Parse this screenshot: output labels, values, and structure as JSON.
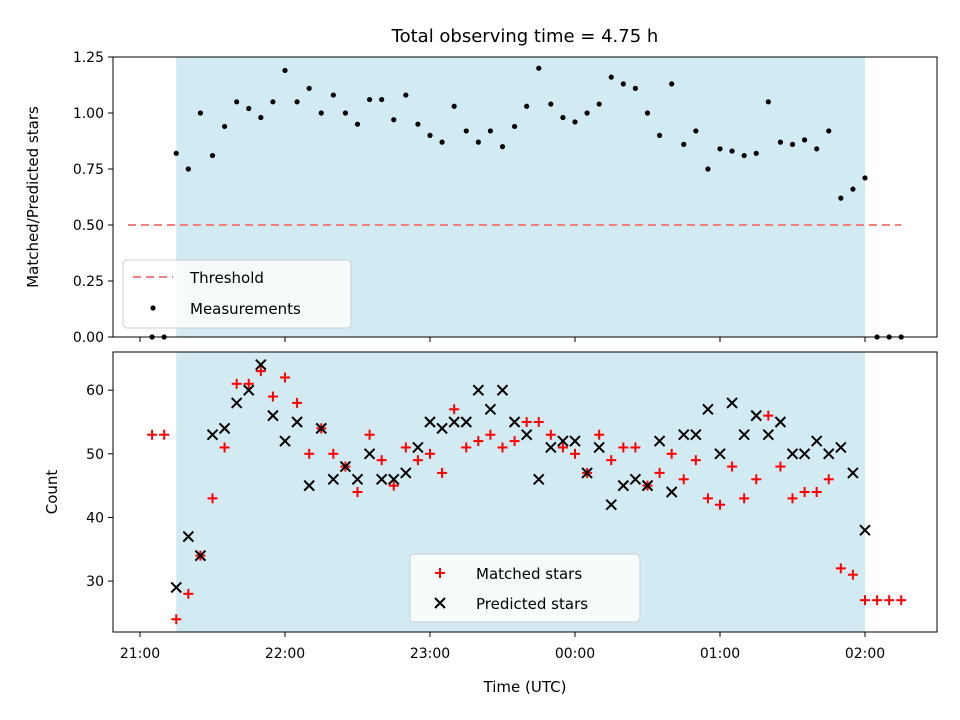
{
  "chart_data": [
    {
      "type": "scatter",
      "title": "Total observing time = 4.75 h",
      "xlabel": "",
      "ylabel": "Matched/Predicted stars",
      "ylim": [
        0,
        1.25
      ],
      "yticks": [
        "0.00",
        "0.25",
        "0.50",
        "0.75",
        "1.00",
        "1.25"
      ],
      "xlim": [
        "20:50",
        "02:30"
      ],
      "observing_window": [
        "21:15",
        "02:00"
      ],
      "threshold": {
        "name": "Threshold",
        "y": 0.5,
        "x_range": [
          "20:55",
          "02:15"
        ],
        "color": "#f08080"
      },
      "series": [
        {
          "name": "Measurements",
          "color": "#000000",
          "points": [
            [
              "21:05",
              0
            ],
            [
              "21:10",
              0
            ],
            [
              "21:15",
              0.82
            ],
            [
              "21:20",
              0.75
            ],
            [
              "21:25",
              1.0
            ],
            [
              "21:30",
              0.81
            ],
            [
              "21:35",
              0.94
            ],
            [
              "21:40",
              1.05
            ],
            [
              "21:45",
              1.02
            ],
            [
              "21:50",
              0.98
            ],
            [
              "21:55",
              1.05
            ],
            [
              "22:00",
              1.19
            ],
            [
              "22:05",
              1.05
            ],
            [
              "22:10",
              1.11
            ],
            [
              "22:15",
              1.0
            ],
            [
              "22:20",
              1.08
            ],
            [
              "22:25",
              1.0
            ],
            [
              "22:30",
              0.95
            ],
            [
              "22:35",
              1.06
            ],
            [
              "22:40",
              1.06
            ],
            [
              "22:45",
              0.97
            ],
            [
              "22:50",
              1.08
            ],
            [
              "22:55",
              0.95
            ],
            [
              "23:00",
              0.9
            ],
            [
              "23:05",
              0.87
            ],
            [
              "23:10",
              1.03
            ],
            [
              "23:15",
              0.92
            ],
            [
              "23:20",
              0.87
            ],
            [
              "23:25",
              0.92
            ],
            [
              "23:30",
              0.85
            ],
            [
              "23:35",
              0.94
            ],
            [
              "23:40",
              1.03
            ],
            [
              "23:45",
              1.2
            ],
            [
              "23:50",
              1.04
            ],
            [
              "23:55",
              0.98
            ],
            [
              "00:00",
              0.96
            ],
            [
              "00:05",
              1.0
            ],
            [
              "00:10",
              1.04
            ],
            [
              "00:15",
              1.16
            ],
            [
              "00:20",
              1.13
            ],
            [
              "00:25",
              1.11
            ],
            [
              "00:30",
              1.0
            ],
            [
              "00:35",
              0.9
            ],
            [
              "00:40",
              1.13
            ],
            [
              "00:45",
              0.86
            ],
            [
              "00:50",
              0.92
            ],
            [
              "00:55",
              0.75
            ],
            [
              "01:00",
              0.84
            ],
            [
              "01:05",
              0.83
            ],
            [
              "01:10",
              0.81
            ],
            [
              "01:15",
              0.82
            ],
            [
              "01:20",
              1.05
            ],
            [
              "01:25",
              0.87
            ],
            [
              "01:30",
              0.86
            ],
            [
              "01:35",
              0.88
            ],
            [
              "01:40",
              0.84
            ],
            [
              "01:45",
              0.92
            ],
            [
              "01:50",
              0.62
            ],
            [
              "01:55",
              0.66
            ],
            [
              "02:00",
              0.71
            ],
            [
              "02:05",
              0
            ],
            [
              "02:10",
              0
            ],
            [
              "02:15",
              0
            ]
          ]
        }
      ],
      "legend": {
        "placement": "lower-left",
        "entries": [
          "Threshold",
          "Measurements"
        ]
      }
    },
    {
      "type": "scatter",
      "title": "",
      "xlabel": "Time (UTC)",
      "ylabel": "Count",
      "ylim": [
        22,
        66
      ],
      "yticks": [
        "30",
        "40",
        "50",
        "60"
      ],
      "xlim": [
        "20:50",
        "02:30"
      ],
      "xticks": [
        "21:00",
        "22:00",
        "23:00",
        "00:00",
        "01:00",
        "02:00"
      ],
      "observing_window": [
        "21:15",
        "02:00"
      ],
      "series": [
        {
          "name": "Matched stars",
          "marker": "plus",
          "color": "#ff0000",
          "points": [
            [
              "21:05",
              53
            ],
            [
              "21:10",
              53
            ],
            [
              "21:15",
              24
            ],
            [
              "21:20",
              28
            ],
            [
              "21:25",
              34
            ],
            [
              "21:30",
              43
            ],
            [
              "21:35",
              51
            ],
            [
              "21:40",
              61
            ],
            [
              "21:45",
              61
            ],
            [
              "21:50",
              63
            ],
            [
              "21:55",
              59
            ],
            [
              "22:00",
              62
            ],
            [
              "22:05",
              58
            ],
            [
              "22:10",
              50
            ],
            [
              "22:15",
              54
            ],
            [
              "22:20",
              50
            ],
            [
              "22:25",
              48
            ],
            [
              "22:30",
              44
            ],
            [
              "22:35",
              53
            ],
            [
              "22:40",
              49
            ],
            [
              "22:45",
              45
            ],
            [
              "22:50",
              51
            ],
            [
              "22:55",
              49
            ],
            [
              "23:00",
              50
            ],
            [
              "23:05",
              47
            ],
            [
              "23:10",
              57
            ],
            [
              "23:15",
              51
            ],
            [
              "23:20",
              52
            ],
            [
              "23:25",
              53
            ],
            [
              "23:30",
              51
            ],
            [
              "23:35",
              52
            ],
            [
              "23:40",
              55
            ],
            [
              "23:45",
              55
            ],
            [
              "23:50",
              53
            ],
            [
              "23:55",
              51
            ],
            [
              "00:00",
              50
            ],
            [
              "00:05",
              47
            ],
            [
              "00:10",
              53
            ],
            [
              "00:15",
              49
            ],
            [
              "00:20",
              51
            ],
            [
              "00:25",
              51
            ],
            [
              "00:30",
              45
            ],
            [
              "00:35",
              47
            ],
            [
              "00:40",
              50
            ],
            [
              "00:45",
              46
            ],
            [
              "00:50",
              49
            ],
            [
              "00:55",
              43
            ],
            [
              "01:00",
              42
            ],
            [
              "01:05",
              48
            ],
            [
              "01:10",
              43
            ],
            [
              "01:15",
              46
            ],
            [
              "01:20",
              56
            ],
            [
              "01:25",
              48
            ],
            [
              "01:30",
              43
            ],
            [
              "01:35",
              44
            ],
            [
              "01:40",
              44
            ],
            [
              "01:45",
              46
            ],
            [
              "01:50",
              32
            ],
            [
              "01:55",
              31
            ],
            [
              "02:00",
              27
            ],
            [
              "02:05",
              27
            ],
            [
              "02:10",
              27
            ],
            [
              "02:15",
              27
            ]
          ]
        },
        {
          "name": "Predicted stars",
          "marker": "x",
          "color": "#000000",
          "points": [
            [
              "21:15",
              29
            ],
            [
              "21:20",
              37
            ],
            [
              "21:25",
              34
            ],
            [
              "21:30",
              53
            ],
            [
              "21:35",
              54
            ],
            [
              "21:40",
              58
            ],
            [
              "21:45",
              60
            ],
            [
              "21:50",
              64
            ],
            [
              "21:55",
              56
            ],
            [
              "22:00",
              52
            ],
            [
              "22:05",
              55
            ],
            [
              "22:10",
              45
            ],
            [
              "22:15",
              54
            ],
            [
              "22:20",
              46
            ],
            [
              "22:25",
              48
            ],
            [
              "22:30",
              46
            ],
            [
              "22:35",
              50
            ],
            [
              "22:40",
              46
            ],
            [
              "22:45",
              46
            ],
            [
              "22:50",
              47
            ],
            [
              "22:55",
              51
            ],
            [
              "23:00",
              55
            ],
            [
              "23:05",
              54
            ],
            [
              "23:10",
              55
            ],
            [
              "23:15",
              55
            ],
            [
              "23:20",
              60
            ],
            [
              "23:25",
              57
            ],
            [
              "23:30",
              60
            ],
            [
              "23:35",
              55
            ],
            [
              "23:40",
              53
            ],
            [
              "23:45",
              46
            ],
            [
              "23:50",
              51
            ],
            [
              "23:55",
              52
            ],
            [
              "00:00",
              52
            ],
            [
              "00:05",
              47
            ],
            [
              "00:10",
              51
            ],
            [
              "00:15",
              42
            ],
            [
              "00:20",
              45
            ],
            [
              "00:25",
              46
            ],
            [
              "00:30",
              45
            ],
            [
              "00:35",
              52
            ],
            [
              "00:40",
              44
            ],
            [
              "00:45",
              53
            ],
            [
              "00:50",
              53
            ],
            [
              "00:55",
              57
            ],
            [
              "01:00",
              50
            ],
            [
              "01:05",
              58
            ],
            [
              "01:10",
              53
            ],
            [
              "01:15",
              56
            ],
            [
              "01:20",
              53
            ],
            [
              "01:25",
              55
            ],
            [
              "01:30",
              50
            ],
            [
              "01:35",
              50
            ],
            [
              "01:40",
              52
            ],
            [
              "01:45",
              50
            ],
            [
              "01:50",
              51
            ],
            [
              "01:55",
              47
            ],
            [
              "02:00",
              38
            ]
          ]
        }
      ],
      "legend": {
        "placement": "lower-center",
        "entries": [
          "Matched stars",
          "Predicted stars"
        ]
      }
    }
  ],
  "colors": {
    "observing_window": "#add8e6",
    "threshold": "#f08080",
    "matched": "#ff0000",
    "predicted": "#000000",
    "measurement": "#000000"
  }
}
